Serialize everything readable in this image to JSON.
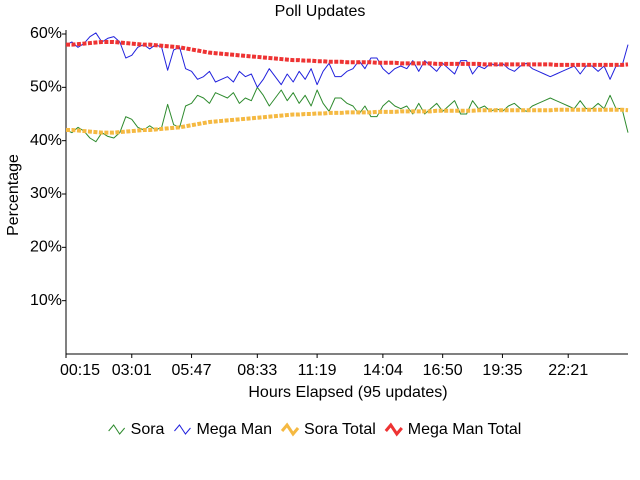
{
  "chart_data": {
    "type": "line",
    "title": "Poll Updates",
    "x_label": "Hours Elapsed (95 updates)",
    "y_label": "Percentage",
    "categories": [
      "00:15",
      null,
      null,
      null,
      null,
      null,
      null,
      null,
      null,
      null,
      null,
      "03:01",
      null,
      null,
      null,
      null,
      null,
      null,
      null,
      null,
      null,
      "05:47",
      null,
      null,
      null,
      null,
      null,
      null,
      null,
      null,
      null,
      null,
      "08:33",
      null,
      null,
      null,
      null,
      null,
      null,
      null,
      null,
      null,
      "11:19",
      null,
      null,
      null,
      null,
      null,
      null,
      null,
      null,
      null,
      null,
      "14:04",
      null,
      null,
      null,
      null,
      null,
      null,
      null,
      null,
      null,
      "16:50",
      null,
      null,
      null,
      null,
      null,
      null,
      null,
      null,
      null,
      "19:35",
      null,
      null,
      null,
      null,
      null,
      null,
      null,
      null,
      null,
      null,
      "22:21",
      null,
      null,
      null,
      null,
      null,
      null,
      null,
      null,
      null,
      null
    ],
    "series": [
      {
        "name": "Sora",
        "color": "#2e8b2e",
        "values": [
          42,
          41.5,
          42.5,
          41.8,
          40.5,
          39.8,
          41.5,
          40.8,
          40.5,
          41.5,
          44.5,
          44,
          42.5,
          42,
          42.8,
          42,
          42.5,
          46.8,
          43,
          42.5,
          46.5,
          47,
          48.5,
          48,
          47,
          49,
          48.5,
          48,
          49,
          47,
          48,
          47.5,
          50,
          48.5,
          46.5,
          48,
          49.5,
          47.5,
          49,
          47,
          48.5,
          46.5,
          49.5,
          47,
          45.5,
          48,
          48,
          47,
          46.5,
          45,
          46.5,
          44.5,
          44.5,
          46.5,
          47.5,
          46.5,
          46,
          46.5,
          45,
          47,
          45,
          46,
          47,
          45.5,
          46.5,
          47.5,
          45,
          45,
          47.5,
          46,
          46.5,
          45.5,
          46,
          45.5,
          46.5,
          47,
          46,
          45.5,
          46.5,
          47,
          47.5,
          48,
          47.5,
          47,
          46.5,
          46,
          47.5,
          46,
          46,
          47,
          46,
          48.5,
          46,
          46,
          41.5
        ]
      },
      {
        "name": "Mega Man",
        "color": "#2222dd",
        "values": [
          58,
          58.5,
          57.5,
          58.2,
          59.5,
          60.2,
          58.5,
          59.2,
          59.5,
          58.5,
          55.5,
          56,
          57.5,
          58,
          57.2,
          58,
          57.5,
          53.2,
          57,
          57.5,
          53.5,
          53,
          51.5,
          52,
          53,
          51,
          51.5,
          52,
          51,
          53,
          52,
          52.5,
          50,
          51.5,
          53.5,
          52,
          50.5,
          52.5,
          51,
          53,
          51.5,
          53.5,
          50.5,
          53,
          54.5,
          52,
          52,
          53,
          53.5,
          55,
          53.5,
          55.5,
          55.5,
          53.5,
          52.5,
          53.5,
          54,
          53.5,
          55,
          53,
          55,
          54,
          53,
          54.5,
          53.5,
          52.5,
          55,
          55,
          52.5,
          54,
          53.5,
          54.5,
          54,
          54.5,
          53.5,
          53,
          54,
          54.5,
          53.5,
          53,
          52.5,
          52,
          52.5,
          53,
          53.5,
          54,
          52.5,
          54,
          54,
          53,
          54,
          51.5,
          54,
          54,
          58
        ]
      },
      {
        "name": "Sora Total",
        "color": "#f5b942",
        "values": [
          42,
          42,
          41.9,
          41.8,
          41.7,
          41.6,
          41.5,
          41.5,
          41.5,
          41.6,
          41.7,
          41.8,
          41.9,
          42,
          42,
          42.1,
          42.2,
          42.3,
          42.4,
          42.5,
          42.7,
          42.9,
          43.1,
          43.3,
          43.5,
          43.6,
          43.7,
          43.8,
          43.9,
          44,
          44.1,
          44.2,
          44.3,
          44.4,
          44.5,
          44.6,
          44.7,
          44.8,
          44.9,
          44.9,
          45,
          45,
          45.1,
          45.1,
          45.2,
          45.2,
          45.2,
          45.3,
          45.3,
          45.3,
          45.3,
          45.3,
          45.4,
          45.4,
          45.4,
          45.4,
          45.5,
          45.5,
          45.5,
          45.5,
          45.5,
          45.5,
          45.6,
          45.6,
          45.6,
          45.6,
          45.6,
          45.6,
          45.6,
          45.7,
          45.7,
          45.7,
          45.7,
          45.7,
          45.7,
          45.7,
          45.7,
          45.7,
          45.7,
          45.7,
          45.7,
          45.7,
          45.8,
          45.8,
          45.8,
          45.8,
          45.8,
          45.8,
          45.8,
          45.8,
          45.8,
          45.8,
          45.8,
          45.8,
          45.7
        ]
      },
      {
        "name": "Mega Man Total",
        "color": "#ee3333",
        "values": [
          58,
          58,
          58.1,
          58.2,
          58.3,
          58.4,
          58.5,
          58.5,
          58.5,
          58.4,
          58.3,
          58.2,
          58.1,
          58,
          58,
          57.9,
          57.8,
          57.7,
          57.6,
          57.5,
          57.3,
          57.1,
          56.9,
          56.7,
          56.5,
          56.4,
          56.3,
          56.2,
          56.1,
          56,
          55.9,
          55.8,
          55.7,
          55.6,
          55.5,
          55.4,
          55.3,
          55.2,
          55.1,
          55.1,
          55,
          55,
          54.9,
          54.9,
          54.8,
          54.8,
          54.8,
          54.7,
          54.7,
          54.7,
          54.7,
          54.7,
          54.6,
          54.6,
          54.6,
          54.6,
          54.5,
          54.5,
          54.5,
          54.5,
          54.5,
          54.5,
          54.4,
          54.4,
          54.4,
          54.4,
          54.4,
          54.4,
          54.4,
          54.4,
          54.3,
          54.3,
          54.3,
          54.3,
          54.3,
          54.3,
          54.3,
          54.3,
          54.3,
          54.3,
          54.3,
          54.3,
          54.2,
          54.2,
          54.2,
          54.2,
          54.2,
          54.2,
          54.2,
          54.2,
          54.2,
          54.2,
          54.2,
          54.2,
          54.3
        ]
      }
    ],
    "ylim": [
      0,
      60
    ],
    "yticks": [
      {
        "value": 10,
        "label": "10%"
      },
      {
        "value": 20,
        "label": "20%"
      },
      {
        "value": 30,
        "label": "30%"
      },
      {
        "value": 40,
        "label": "40%"
      },
      {
        "value": 50,
        "label": "50%"
      },
      {
        "value": 60,
        "label": "60%"
      }
    ],
    "legend": "bottom"
  }
}
